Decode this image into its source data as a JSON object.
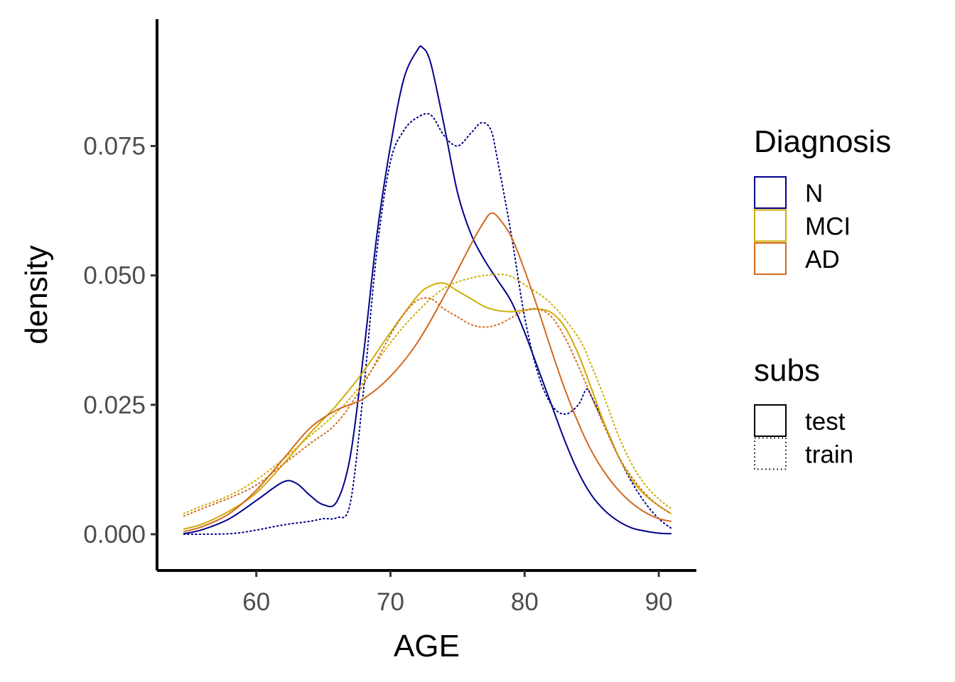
{
  "chart_data": {
    "type": "line",
    "subtype": "density",
    "xlabel": "AGE",
    "ylabel": "density",
    "xlim": [
      52.6,
      92.8
    ],
    "ylim": [
      -0.007,
      0.0995
    ],
    "xticks": [
      60,
      70,
      80,
      90
    ],
    "xtick_labels": [
      "60",
      "70",
      "80",
      "90"
    ],
    "yticks": [
      0,
      0.025,
      0.05,
      0.075
    ],
    "ytick_labels": [
      "0.000",
      "0.025",
      "0.050",
      "0.075"
    ],
    "grid": false,
    "legend_position": "right",
    "legends": [
      {
        "title": "Diagnosis",
        "items": [
          {
            "label": "N",
            "color": "#00008B"
          },
          {
            "label": "MCI",
            "color": "#CDAD00"
          },
          {
            "label": "AD",
            "color": "#D2691E"
          }
        ]
      },
      {
        "title": "subs",
        "items": [
          {
            "label": "test",
            "linetype": "solid"
          },
          {
            "label": "train",
            "linetype": "dotted"
          }
        ]
      }
    ],
    "series": [
      {
        "diagnosis": "N",
        "subs": "test",
        "color": "#00008B",
        "linetype": "solid",
        "points": [
          [
            54.6,
            0.0001
          ],
          [
            56,
            0.0009
          ],
          [
            58,
            0.003
          ],
          [
            60,
            0.0065
          ],
          [
            62,
            0.0101
          ],
          [
            63,
            0.0098
          ],
          [
            64,
            0.0075
          ],
          [
            65,
            0.0057
          ],
          [
            66,
            0.0063
          ],
          [
            67,
            0.015
          ],
          [
            68,
            0.035
          ],
          [
            69,
            0.058
          ],
          [
            70,
            0.075
          ],
          [
            71,
            0.088
          ],
          [
            72,
            0.0935
          ],
          [
            72.4,
            0.094
          ],
          [
            73,
            0.091
          ],
          [
            74,
            0.079
          ],
          [
            75,
            0.066
          ],
          [
            76,
            0.058
          ],
          [
            77,
            0.053
          ],
          [
            78,
            0.049
          ],
          [
            79,
            0.045
          ],
          [
            80,
            0.039
          ],
          [
            81,
            0.032
          ],
          [
            82,
            0.025
          ],
          [
            83,
            0.018
          ],
          [
            84,
            0.012
          ],
          [
            85,
            0.0075
          ],
          [
            86,
            0.0045
          ],
          [
            87,
            0.0025
          ],
          [
            88,
            0.0012
          ],
          [
            89,
            0.0006
          ],
          [
            90,
            0.0002
          ],
          [
            90.9,
            0.0001
          ]
        ]
      },
      {
        "diagnosis": "N",
        "subs": "train",
        "color": "#00008B",
        "linetype": "dotted",
        "points": [
          [
            54.6,
            0
          ],
          [
            58,
            0.0001
          ],
          [
            60,
            0.0008
          ],
          [
            62,
            0.0018
          ],
          [
            64,
            0.0025
          ],
          [
            65,
            0.003
          ],
          [
            66,
            0.0032
          ],
          [
            67,
            0.006
          ],
          [
            68,
            0.028
          ],
          [
            69,
            0.055
          ],
          [
            70,
            0.072
          ],
          [
            71,
            0.078
          ],
          [
            72,
            0.0805
          ],
          [
            73,
            0.081
          ],
          [
            74,
            0.077
          ],
          [
            75,
            0.075
          ],
          [
            76,
            0.0775
          ],
          [
            76.8,
            0.0795
          ],
          [
            77.5,
            0.078
          ],
          [
            78,
            0.072
          ],
          [
            79,
            0.058
          ],
          [
            80,
            0.042
          ],
          [
            81,
            0.031
          ],
          [
            82,
            0.025
          ],
          [
            83,
            0.0232
          ],
          [
            84,
            0.025
          ],
          [
            84.6,
            0.028
          ],
          [
            85,
            0.0265
          ],
          [
            86,
            0.021
          ],
          [
            87,
            0.015
          ],
          [
            88,
            0.01
          ],
          [
            89,
            0.006
          ],
          [
            90,
            0.003
          ],
          [
            90.9,
            0.0012
          ]
        ]
      },
      {
        "diagnosis": "MCI",
        "subs": "test",
        "color": "#CDAD00",
        "linetype": "solid",
        "points": [
          [
            54.6,
            0.001
          ],
          [
            56,
            0.002
          ],
          [
            58,
            0.0045
          ],
          [
            60,
            0.008
          ],
          [
            62,
            0.0135
          ],
          [
            64,
            0.0195
          ],
          [
            66,
            0.025
          ],
          [
            68,
            0.0315
          ],
          [
            70,
            0.039
          ],
          [
            72,
            0.046
          ],
          [
            73,
            0.048
          ],
          [
            74,
            0.0485
          ],
          [
            75,
            0.047
          ],
          [
            76,
            0.0455
          ],
          [
            77,
            0.044
          ],
          [
            78,
            0.0432
          ],
          [
            79,
            0.043
          ],
          [
            80,
            0.0433
          ],
          [
            81,
            0.0435
          ],
          [
            82,
            0.0428
          ],
          [
            83,
            0.04
          ],
          [
            84,
            0.0348
          ],
          [
            85,
            0.028
          ],
          [
            86,
            0.021
          ],
          [
            87,
            0.015
          ],
          [
            88,
            0.0105
          ],
          [
            89,
            0.0075
          ],
          [
            90,
            0.0055
          ],
          [
            90.9,
            0.004
          ]
        ]
      },
      {
        "diagnosis": "MCI",
        "subs": "train",
        "color": "#CDAD00",
        "linetype": "dotted",
        "points": [
          [
            54.6,
            0.004
          ],
          [
            56,
            0.0055
          ],
          [
            58,
            0.0075
          ],
          [
            60,
            0.0105
          ],
          [
            62,
            0.0145
          ],
          [
            64,
            0.019
          ],
          [
            66,
            0.0235
          ],
          [
            68,
            0.0295
          ],
          [
            70,
            0.037
          ],
          [
            72,
            0.043
          ],
          [
            74,
            0.0475
          ],
          [
            76,
            0.0495
          ],
          [
            78,
            0.0502
          ],
          [
            79,
            0.0498
          ],
          [
            80,
            0.0482
          ],
          [
            82,
            0.0445
          ],
          [
            84,
            0.038
          ],
          [
            85,
            0.0325
          ],
          [
            86,
            0.026
          ],
          [
            87,
            0.019
          ],
          [
            88,
            0.0135
          ],
          [
            89,
            0.0095
          ],
          [
            90,
            0.0068
          ],
          [
            90.9,
            0.005
          ]
        ]
      },
      {
        "diagnosis": "AD",
        "subs": "test",
        "color": "#D2691E",
        "linetype": "solid",
        "points": [
          [
            54.6,
            0.0005
          ],
          [
            56,
            0.0015
          ],
          [
            58,
            0.004
          ],
          [
            60,
            0.0085
          ],
          [
            62,
            0.0145
          ],
          [
            64,
            0.0205
          ],
          [
            66,
            0.024
          ],
          [
            68,
            0.0262
          ],
          [
            70,
            0.0305
          ],
          [
            72,
            0.037
          ],
          [
            74,
            0.046
          ],
          [
            76,
            0.056
          ],
          [
            77,
            0.0605
          ],
          [
            77.5,
            0.062
          ],
          [
            78,
            0.0613
          ],
          [
            79,
            0.0575
          ],
          [
            80,
            0.051
          ],
          [
            81,
            0.0435
          ],
          [
            82,
            0.0355
          ],
          [
            83,
            0.028
          ],
          [
            84,
            0.0215
          ],
          [
            85,
            0.016
          ],
          [
            86,
            0.0118
          ],
          [
            87,
            0.0085
          ],
          [
            88,
            0.006
          ],
          [
            89,
            0.0042
          ],
          [
            90,
            0.003
          ],
          [
            90.9,
            0.0025
          ]
        ]
      },
      {
        "diagnosis": "AD",
        "subs": "train",
        "color": "#D2691E",
        "linetype": "dotted",
        "points": [
          [
            54.6,
            0.0035
          ],
          [
            56,
            0.005
          ],
          [
            58,
            0.007
          ],
          [
            60,
            0.0095
          ],
          [
            62,
            0.0135
          ],
          [
            64,
            0.0175
          ],
          [
            66,
            0.0215
          ],
          [
            68,
            0.029
          ],
          [
            70,
            0.0385
          ],
          [
            71,
            0.0425
          ],
          [
            72,
            0.0452
          ],
          [
            73,
            0.0455
          ],
          [
            74,
            0.0435
          ],
          [
            75,
            0.042
          ],
          [
            76,
            0.0405
          ],
          [
            77,
            0.04
          ],
          [
            78,
            0.0405
          ],
          [
            79,
            0.0418
          ],
          [
            80,
            0.0432
          ],
          [
            81,
            0.0435
          ],
          [
            82,
            0.042
          ],
          [
            83,
            0.038
          ],
          [
            84,
            0.0325
          ],
          [
            85,
            0.0265
          ],
          [
            86,
            0.0205
          ],
          [
            87,
            0.015
          ],
          [
            88,
            0.011
          ],
          [
            89,
            0.0078
          ],
          [
            90,
            0.0055
          ],
          [
            90.9,
            0.004
          ]
        ]
      }
    ]
  }
}
